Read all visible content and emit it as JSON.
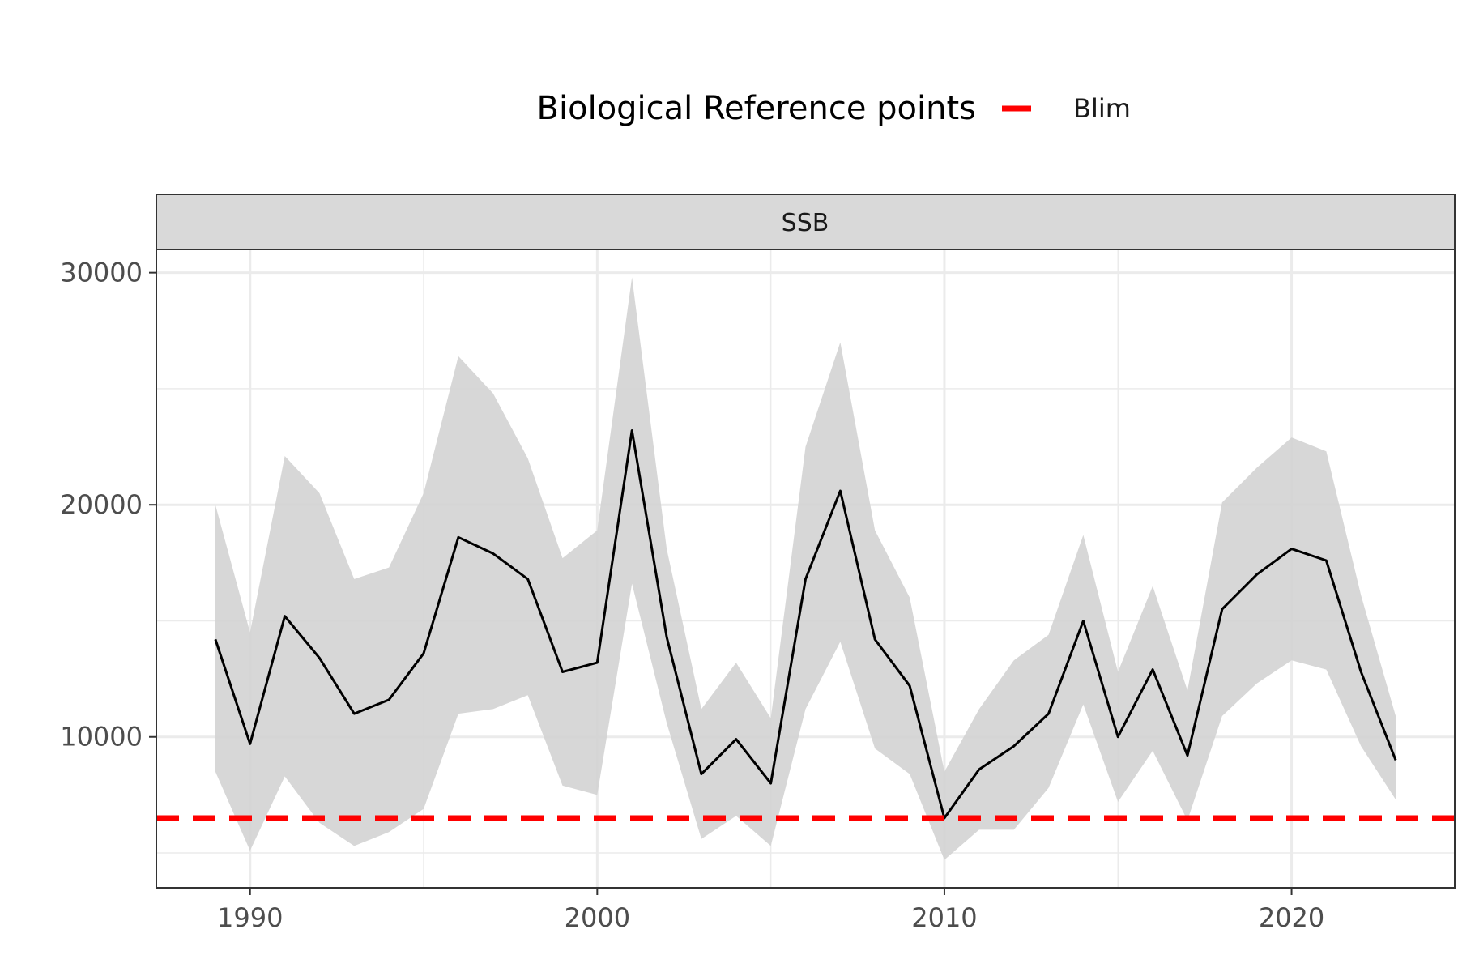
{
  "chart_data": {
    "type": "line",
    "facet_label": "SSB",
    "legend": {
      "title": "Biological Reference points",
      "entries": [
        "Blim"
      ],
      "placement": "top"
    },
    "x": [
      1989,
      1990,
      1991,
      1992,
      1993,
      1994,
      1995,
      1996,
      1997,
      1998,
      1999,
      2000,
      2001,
      2002,
      2003,
      2004,
      2005,
      2006,
      2007,
      2008,
      2009,
      2010,
      2011,
      2012,
      2013,
      2014,
      2015,
      2016,
      2017,
      2018,
      2019,
      2020,
      2021,
      2022,
      2023
    ],
    "series": [
      {
        "values": [
          14200,
          9700,
          15200,
          13400,
          11000,
          11600,
          13600,
          18600,
          17900,
          16800,
          12800,
          13200,
          23200,
          14300,
          8400,
          9900,
          8000,
          16800,
          20600,
          14200,
          12200,
          6500,
          8600,
          9600,
          11000,
          15000,
          10000,
          12900,
          9200,
          15500,
          17000,
          18100,
          17600,
          12800,
          9000
        ],
        "lower": [
          8500,
          5100,
          8300,
          6300,
          5300,
          5900,
          6900,
          11000,
          11200,
          11800,
          7900,
          7500,
          16600,
          10600,
          5600,
          6600,
          5300,
          11200,
          14100,
          9500,
          8400,
          4700,
          6000,
          6000,
          7800,
          11400,
          7200,
          9400,
          6400,
          10900,
          12300,
          13300,
          12900,
          9600,
          7300
        ],
        "upper": [
          20000,
          14500,
          22100,
          20500,
          16800,
          17300,
          20500,
          26400,
          24800,
          22000,
          17700,
          18900,
          29800,
          18100,
          11200,
          13200,
          10800,
          22500,
          27000,
          18900,
          16000,
          8500,
          11200,
          13300,
          14400,
          18700,
          12800,
          16500,
          12000,
          20100,
          21600,
          22900,
          22300,
          16100,
          10900
        ]
      }
    ],
    "reference_lines": [
      {
        "name": "Blim",
        "value": 6500,
        "color": "#ff0000",
        "style": "dashed"
      }
    ],
    "xlim": [
      1987.3,
      2024.7
    ],
    "ylim": [
      3500,
      31000
    ],
    "x_ticks": [
      1990,
      2000,
      2010,
      2020
    ],
    "y_ticks": [
      10000,
      20000,
      30000
    ],
    "x_tick_labels": [
      "1990",
      "2000",
      "2010",
      "2020"
    ],
    "y_tick_labels": [
      "10000",
      "20000",
      "30000"
    ],
    "x_minor_ticks": [
      1995,
      2005,
      2015
    ],
    "y_minor_ticks": [
      5000,
      15000,
      25000
    ],
    "grid": true,
    "colors": {
      "line": "#000000",
      "ribbon": "#d3d3d3",
      "grid": "#ebebeb",
      "strip": "#d9d9d9",
      "panel_border": "#333333",
      "reference": "#ff0000"
    }
  }
}
